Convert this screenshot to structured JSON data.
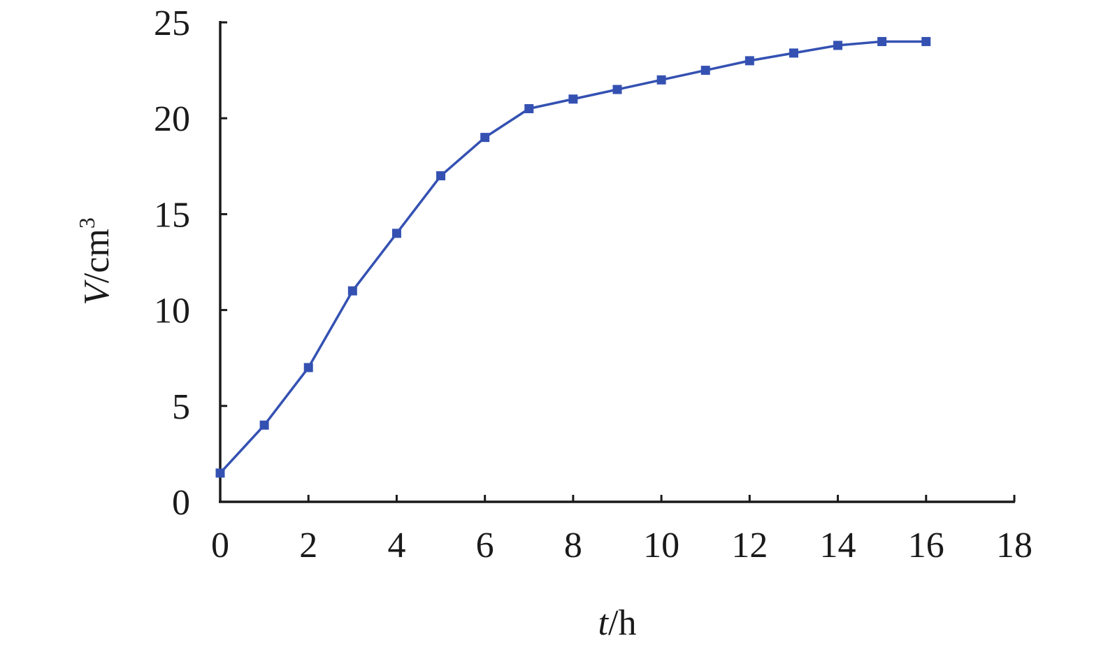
{
  "chart_data": {
    "type": "line",
    "x": [
      0,
      1,
      2,
      3,
      4,
      5,
      6,
      7,
      8,
      9,
      10,
      11,
      12,
      13,
      14,
      15,
      16
    ],
    "series": [
      {
        "values": [
          1.5,
          4,
          7,
          11,
          14,
          17,
          19,
          20.5,
          21,
          21.5,
          22,
          22.5,
          23,
          23.4,
          23.8,
          24,
          24
        ]
      }
    ],
    "xlim": [
      0,
      18
    ],
    "ylim": [
      0,
      25
    ],
    "x_ticks": [
      "0",
      "2",
      "4",
      "6",
      "8",
      "10",
      "12",
      "14",
      "16",
      "18"
    ],
    "y_ticks": [
      "0",
      "5",
      "10",
      "15",
      "20",
      "25"
    ],
    "x_tick_values": [
      0,
      2,
      4,
      6,
      8,
      10,
      12,
      14,
      16,
      18
    ],
    "y_tick_values": [
      0,
      5,
      10,
      15,
      20,
      25
    ],
    "xlabel": {
      "var": "t",
      "unit": "/h"
    },
    "ylabel": {
      "var": "V",
      "unit": "/cm",
      "sup": "3"
    },
    "grid": false,
    "legend": "none",
    "colors": {
      "series": "#3451b2",
      "axis": "#1a1a1a"
    }
  }
}
